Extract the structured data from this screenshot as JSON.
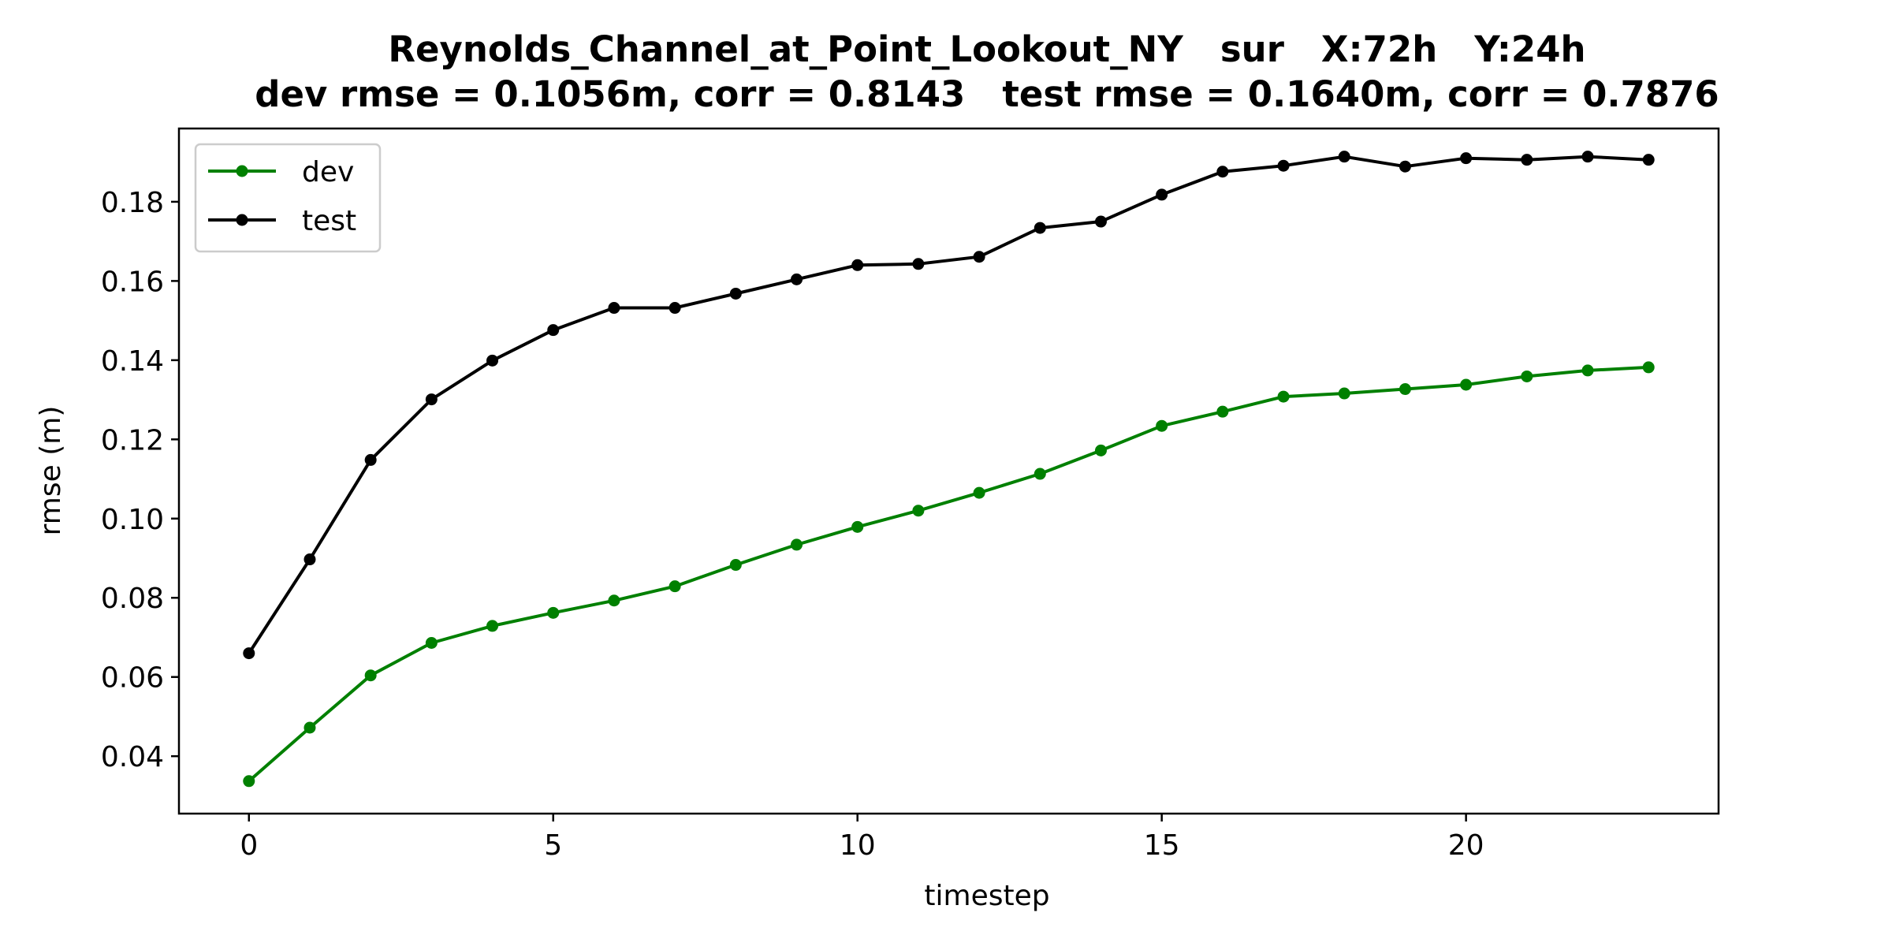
{
  "chart_data": {
    "type": "line",
    "title_line1": "Reynolds_Channel_at_Point_Lookout_NY   sur   X:72h   Y:24h",
    "title_line2": "dev rmse = 0.1056m, corr = 0.8143   test rmse = 0.1640m, corr = 0.7876",
    "xlabel": "timestep",
    "ylabel": "rmse (m)",
    "xlim": [
      -1.15,
      24.15
    ],
    "ylim": [
      0.0255,
      0.1985
    ],
    "xticks": [
      0,
      5,
      10,
      15,
      20
    ],
    "xtick_labels": [
      "0",
      "5",
      "10",
      "15",
      "20"
    ],
    "yticks": [
      0.04,
      0.06,
      0.08,
      0.1,
      0.12,
      0.14,
      0.16,
      0.18
    ],
    "ytick_labels": [
      "0.04",
      "0.06",
      "0.08",
      "0.10",
      "0.12",
      "0.14",
      "0.16",
      "0.18"
    ],
    "grid": false,
    "legend_position": "top-left",
    "x": [
      0,
      1,
      2,
      3,
      4,
      5,
      6,
      7,
      8,
      9,
      10,
      11,
      12,
      13,
      14,
      15,
      16,
      17,
      18,
      19,
      20,
      21,
      22,
      23
    ],
    "series": [
      {
        "name": "dev",
        "color": "#008000",
        "values": [
          0.0337,
          0.0472,
          0.0604,
          0.0686,
          0.0729,
          0.0762,
          0.0793,
          0.0829,
          0.0883,
          0.0934,
          0.0979,
          0.102,
          0.1065,
          0.1113,
          0.1172,
          0.1234,
          0.127,
          0.1308,
          0.1316,
          0.1327,
          0.1338,
          0.1359,
          0.1374,
          0.1382
        ]
      },
      {
        "name": "test",
        "color": "#000000",
        "values": [
          0.066,
          0.0897,
          0.1148,
          0.1301,
          0.1399,
          0.1476,
          0.1532,
          0.1532,
          0.1568,
          0.1604,
          0.164,
          0.1643,
          0.1661,
          0.1734,
          0.175,
          0.1818,
          0.1876,
          0.1891,
          0.1914,
          0.1889,
          0.191,
          0.1906,
          0.1914,
          0.1906
        ]
      }
    ]
  }
}
